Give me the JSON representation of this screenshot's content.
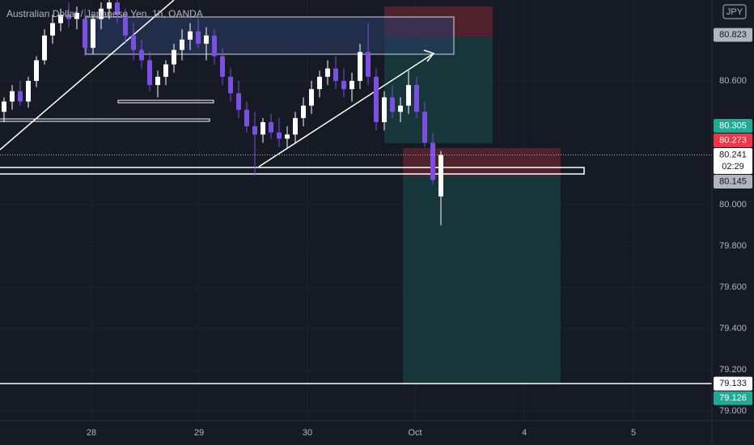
{
  "chart_data": {
    "type": "candlestick",
    "title": "Australian Dollar / Japanese Yen, 1h, OANDA",
    "currency_button": "JPY",
    "up_color": "#ffffff",
    "down_color": "#7b4fe0",
    "xlim": [
      -0.5,
      87.5
    ],
    "ylim": [
      78.953,
      80.992
    ],
    "yticks": [
      {
        "value": 80.6,
        "label": "80.600"
      },
      {
        "value": 80.0,
        "label": "80.000"
      },
      {
        "value": 79.8,
        "label": "79.800"
      },
      {
        "value": 79.6,
        "label": "79.600"
      },
      {
        "value": 79.4,
        "label": "79.400"
      },
      {
        "value": 79.2,
        "label": "79.200"
      },
      {
        "value": 79.0,
        "label": "79.000"
      }
    ],
    "xticks": [
      {
        "value": 10.8,
        "label": "28"
      },
      {
        "value": 24.1,
        "label": "29"
      },
      {
        "value": 37.5,
        "label": "30"
      },
      {
        "value": 50.8,
        "label": "Oct"
      },
      {
        "value": 64.3,
        "label": "4"
      },
      {
        "value": 77.8,
        "label": "5"
      }
    ],
    "candles": [
      [
        80.45,
        80.52,
        80.4,
        80.5
      ],
      [
        80.5,
        80.58,
        80.46,
        80.55
      ],
      [
        80.55,
        80.6,
        80.48,
        80.5
      ],
      [
        80.5,
        80.62,
        80.47,
        80.6
      ],
      [
        80.6,
        80.72,
        80.57,
        80.7
      ],
      [
        80.7,
        80.85,
        80.68,
        80.82
      ],
      [
        80.82,
        80.92,
        80.78,
        80.88
      ],
      [
        80.88,
        80.95,
        80.84,
        80.92
      ],
      [
        80.92,
        80.98,
        80.86,
        80.9
      ],
      [
        80.9,
        80.96,
        80.85,
        80.93
      ],
      [
        80.9,
        80.95,
        80.72,
        80.76
      ],
      [
        80.76,
        80.92,
        80.73,
        80.9
      ],
      [
        80.9,
        80.98,
        80.85,
        80.95
      ],
      [
        80.95,
        81.02,
        80.9,
        80.98
      ],
      [
        80.98,
        81.0,
        80.88,
        80.92
      ],
      [
        80.92,
        80.95,
        80.78,
        80.82
      ],
      [
        80.82,
        80.88,
        80.7,
        80.75
      ],
      [
        80.75,
        80.8,
        80.66,
        80.7
      ],
      [
        80.7,
        80.74,
        80.55,
        80.58
      ],
      [
        80.58,
        80.65,
        80.52,
        80.62
      ],
      [
        80.62,
        80.7,
        80.58,
        80.68
      ],
      [
        80.68,
        80.78,
        80.64,
        80.75
      ],
      [
        80.75,
        80.85,
        80.7,
        80.8
      ],
      [
        80.8,
        80.88,
        80.75,
        80.84
      ],
      [
        80.84,
        80.9,
        80.76,
        80.78
      ],
      [
        80.78,
        80.86,
        80.7,
        80.82
      ],
      [
        80.82,
        80.85,
        80.68,
        80.72
      ],
      [
        80.72,
        80.76,
        80.58,
        80.62
      ],
      [
        80.62,
        80.66,
        80.5,
        80.54
      ],
      [
        80.54,
        80.6,
        80.42,
        80.46
      ],
      [
        80.46,
        80.5,
        80.35,
        80.38
      ],
      [
        80.38,
        80.45,
        80.14,
        80.34
      ],
      [
        80.34,
        80.42,
        80.3,
        80.4
      ],
      [
        80.4,
        80.44,
        80.32,
        80.35
      ],
      [
        80.35,
        80.42,
        80.28,
        80.32
      ],
      [
        80.32,
        80.38,
        80.27,
        80.34
      ],
      [
        80.34,
        80.45,
        80.3,
        80.42
      ],
      [
        80.42,
        80.52,
        80.38,
        80.48
      ],
      [
        80.48,
        80.6,
        80.44,
        80.56
      ],
      [
        80.56,
        80.65,
        80.52,
        80.62
      ],
      [
        80.62,
        80.7,
        80.58,
        80.66
      ],
      [
        80.66,
        80.72,
        80.56,
        80.6
      ],
      [
        80.6,
        80.66,
        80.52,
        80.56
      ],
      [
        80.56,
        80.64,
        80.5,
        80.6
      ],
      [
        80.6,
        80.78,
        80.56,
        80.74
      ],
      [
        80.74,
        80.88,
        80.58,
        80.62
      ],
      [
        80.62,
        80.66,
        80.36,
        80.4
      ],
      [
        80.4,
        80.55,
        80.36,
        80.52
      ],
      [
        80.52,
        80.58,
        80.42,
        80.45
      ],
      [
        80.45,
        80.52,
        80.4,
        80.48
      ],
      [
        80.48,
        80.65,
        80.44,
        80.58
      ],
      [
        80.58,
        80.62,
        80.42,
        80.45
      ],
      [
        80.45,
        80.5,
        80.28,
        80.3
      ],
      [
        80.3,
        80.35,
        80.1,
        80.12
      ],
      [
        80.04,
        80.26,
        79.9,
        80.241
      ]
    ],
    "price_tags": [
      {
        "value": 80.823,
        "label": "80.823",
        "color": "#b2b5be",
        "text_color": "#131722"
      },
      {
        "value": 80.305,
        "label": "80.305",
        "color": "#22ab94",
        "text_color": "#ffffff"
      },
      {
        "value": 80.273,
        "label": "80.273",
        "color": "#f23645",
        "text_color": "#ffffff"
      },
      {
        "value": 80.241,
        "label": "80.241",
        "color": "#ffffff",
        "text_color": "#131722",
        "countdown": "02:29"
      },
      {
        "value": 80.145,
        "label": "80.145",
        "color": "#b2b5be",
        "text_color": "#131722"
      },
      {
        "value": 79.133,
        "label": "79.133",
        "color": "#ffffff",
        "text_color": "#131722"
      },
      {
        "value": 79.126,
        "label": "79.126",
        "color": "#22ab94",
        "text_color": "#ffffff"
      }
    ],
    "price_line": {
      "value": 79.133,
      "color": "#ffffff"
    }
  }
}
